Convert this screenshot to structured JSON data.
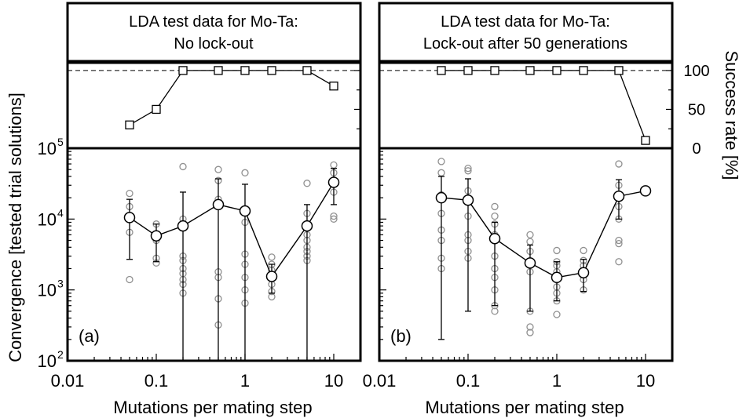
{
  "chart_data": [
    {
      "type": "scatter",
      "panel_label": "(a)",
      "title": "LDA test data for Mo-Ta:",
      "subtitle": "No lock-out",
      "xlabel": "Mutations per mating step",
      "ylabel": "Convergence [tested trial solutions]",
      "x_scale": "log",
      "xlim": [
        0.01,
        20
      ],
      "x_ticks": [
        "0.01",
        "0.1",
        "1",
        "10"
      ],
      "y_scale": "log",
      "ylim": [
        100,
        100000
      ],
      "success_rate": {
        "ylabel": "Success rate [%]",
        "ylim": [
          0,
          110
        ],
        "y_ticks": [
          "0",
          "50",
          "100"
        ],
        "reference_line": 100,
        "x": [
          0.05,
          0.1,
          0.2,
          0.5,
          1,
          2,
          5,
          10
        ],
        "values": [
          30,
          50,
          100,
          100,
          100,
          100,
          100,
          80
        ]
      },
      "mean_series": {
        "x": [
          0.05,
          0.1,
          0.2,
          0.5,
          1,
          2,
          5,
          10
        ],
        "mean": [
          10500,
          5800,
          8000,
          16000,
          13000,
          1550,
          8000,
          33000
        ],
        "err_low": [
          2700,
          2500,
          100,
          100,
          100,
          900,
          100,
          16000
        ],
        "err_high": [
          19000,
          8500,
          24000,
          37000,
          31000,
          2300,
          16000,
          52000
        ]
      },
      "individual_runs": [
        {
          "x": 0.05,
          "values": [
            23000,
            15000,
            6500,
            1400
          ]
        },
        {
          "x": 0.1,
          "values": [
            8500,
            6000,
            5000,
            2800,
            2400
          ]
        },
        {
          "x": 0.2,
          "values": [
            55000,
            10000,
            3000,
            2600,
            2000,
            1700,
            1400,
            1200,
            900
          ]
        },
        {
          "x": 0.5,
          "values": [
            50000,
            35000,
            19000,
            1800,
            1500,
            750,
            320
          ]
        },
        {
          "x": 1,
          "values": [
            45000,
            9000,
            3200,
            2300,
            1500,
            1000,
            650
          ]
        },
        {
          "x": 2,
          "values": [
            2900,
            2300,
            1900,
            1500,
            1200,
            950,
            800
          ]
        },
        {
          "x": 5,
          "values": [
            32000,
            12000,
            8000,
            6000,
            5000,
            4000,
            3500,
            3000,
            2600
          ]
        },
        {
          "x": 10,
          "values": [
            58000,
            45000,
            35000,
            24000,
            11000,
            10000
          ]
        }
      ]
    },
    {
      "type": "scatter",
      "panel_label": "(b)",
      "title": "LDA test data for Mo-Ta:",
      "subtitle": "Lock-out after 50 generations",
      "xlabel": "Mutations per mating step",
      "ylabel": "",
      "x_scale": "log",
      "xlim": [
        0.01,
        20
      ],
      "x_ticks": [
        "0.01",
        "0.1",
        "1",
        "10"
      ],
      "y_scale": "log",
      "ylim": [
        100,
        100000
      ],
      "success_rate": {
        "ylabel": "Success rate [%]",
        "ylim": [
          0,
          110
        ],
        "y_ticks": [
          "0",
          "50",
          "100"
        ],
        "reference_line": 100,
        "x": [
          0.05,
          0.1,
          0.2,
          0.5,
          1,
          2,
          5,
          10
        ],
        "values": [
          100,
          100,
          100,
          100,
          100,
          100,
          100,
          10
        ]
      },
      "mean_series": {
        "x": [
          0.05,
          0.1,
          0.2,
          0.5,
          1,
          2,
          5,
          10
        ],
        "mean": [
          20000,
          18500,
          5300,
          2400,
          1500,
          1750,
          21000,
          25000
        ],
        "err_low": [
          200,
          500,
          600,
          500,
          700,
          950,
          10000,
          25000
        ],
        "err_high": [
          40000,
          37000,
          9000,
          4300,
          2500,
          2700,
          36000,
          25000
        ]
      },
      "individual_runs": [
        {
          "x": 0.05,
          "values": [
            65000,
            45000,
            22000,
            12000,
            7000,
            5000,
            2800,
            2000
          ]
        },
        {
          "x": 0.1,
          "values": [
            52000,
            48000,
            25000,
            11000,
            6000,
            5000,
            3500,
            2800
          ]
        },
        {
          "x": 0.2,
          "values": [
            15000,
            11000,
            8500,
            6000,
            3000,
            2000,
            1500,
            1000,
            600,
            500
          ]
        },
        {
          "x": 0.5,
          "values": [
            6000,
            4800,
            3500,
            1800,
            500,
            300,
            250
          ]
        },
        {
          "x": 1,
          "values": [
            3600,
            2500,
            2200,
            1800,
            1400,
            1100,
            900,
            700,
            450
          ]
        },
        {
          "x": 2,
          "values": [
            3600,
            2600,
            2200,
            1800,
            1400,
            1000
          ]
        },
        {
          "x": 5,
          "values": [
            60000,
            30000,
            20000,
            15000,
            10000,
            5000,
            4500,
            2500
          ]
        },
        {
          "x": 10,
          "values": [
            25000
          ]
        }
      ]
    }
  ]
}
